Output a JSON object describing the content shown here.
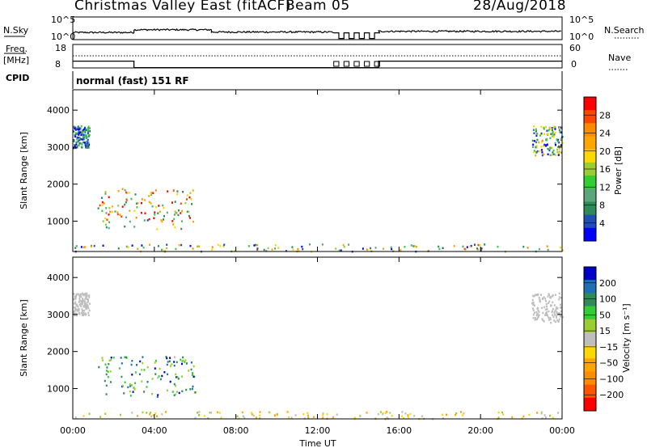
{
  "header": {
    "station": "Christmas Valley East (fitACF)",
    "beam": "Beam 05",
    "date": "28/Aug/2018"
  },
  "top_panels": {
    "nsky_label": "N.Sky",
    "nsky_ticks": [
      "10^5",
      "10^0"
    ],
    "nsearch_label": "N.Search",
    "nsearch_ticks": [
      "10^5",
      "10^0"
    ],
    "freq_label": "Freq.",
    "freq_unit": "[MHz]",
    "freq_ticks": [
      "18",
      "8"
    ],
    "nave_label": "Nave",
    "nave_ticks": [
      "60",
      "0"
    ],
    "cpid_label": "CPID",
    "cpid_text": "normal (fast) 151 RF"
  },
  "colors": {
    "power_scale": [
      "#0000ff",
      "#1e4fb4",
      "#2e8b57",
      "#5aa77a",
      "#32cd32",
      "#9acd32",
      "#ffd700",
      "#ffa500",
      "#ff8c00",
      "#ff4500",
      "#ff0000"
    ],
    "velocity_scale": [
      "#ff0000",
      "#ff5500",
      "#ff8c00",
      "#ffa500",
      "#ffd700",
      "#bebebe",
      "#9acd32",
      "#32cd32",
      "#2e8b57",
      "#1e6fb4",
      "#0000c8"
    ],
    "ground_grey": "#bebebe"
  },
  "chart_data": [
    {
      "type": "line",
      "panel": "nsky-nsearch",
      "x_range": [
        "00:00",
        "00:00"
      ],
      "segments": [
        {
          "x": [
            0.0,
            3.0
          ],
          "level": 0.28
        },
        {
          "x": [
            3.0,
            6.8
          ],
          "level": 0.4
        },
        {
          "x": [
            6.8,
            12.8
          ],
          "level": 0.3
        },
        {
          "x": [
            12.8,
            15.0
          ],
          "level": "dropouts"
        },
        {
          "x": [
            15.0,
            24.0
          ],
          "level": 0.33
        }
      ]
    },
    {
      "type": "line",
      "panel": "freq-nave",
      "series": [
        {
          "name": "Freq.",
          "x": [
            0,
            3.0,
            3.0,
            15.0,
            15.0,
            24
          ],
          "y": [
            10.9,
            10.9,
            8.1,
            8.1,
            10.9,
            10.9
          ]
        },
        {
          "name": "Nave",
          "x": [
            0,
            24
          ],
          "y": [
            31,
            31
          ]
        }
      ],
      "freq_ylim": [
        8,
        18
      ],
      "nave_ylim": [
        0,
        60
      ]
    },
    {
      "type": "heatmap",
      "panel": "power",
      "ylabel": "Slant Range [km]",
      "yticks": [
        "4000",
        "3000",
        "2000",
        "1000"
      ],
      "ylim": [
        180,
        4550
      ],
      "xticks": [
        "00:00",
        "04:00",
        "08:00",
        "12:00",
        "16:00",
        "20:00",
        "00:00"
      ],
      "colorbar": {
        "label": "Power [dB]",
        "ticks": [
          "28",
          "24",
          "20",
          "16",
          "12",
          "8",
          "4"
        ]
      },
      "scatter_regions": [
        {
          "t": [
            0.0,
            0.8
          ],
          "r": [
            3000,
            3600
          ],
          "power": [
            4,
            14
          ]
        },
        {
          "t": [
            1.2,
            6.0
          ],
          "r": [
            800,
            1900
          ],
          "power": [
            8,
            28
          ]
        },
        {
          "t": [
            0.0,
            24.0
          ],
          "r": [
            200,
            400
          ],
          "power": [
            4,
            24
          ]
        },
        {
          "t": [
            22.5,
            24.0
          ],
          "r": [
            2800,
            3600
          ],
          "power": [
            4,
            22
          ]
        }
      ]
    },
    {
      "type": "heatmap",
      "panel": "velocity",
      "ylabel": "Slant Range [km]",
      "yticks": [
        "4000",
        "3000",
        "2000",
        "1000"
      ],
      "ylim": [
        180,
        4550
      ],
      "xticks": [
        "00:00",
        "04:00",
        "08:00",
        "12:00",
        "16:00",
        "20:00",
        "00:00"
      ],
      "xlabel": "Time UT",
      "colorbar": {
        "label": "Velocity [m s⁻¹]",
        "ticks": [
          "200",
          "100",
          "50",
          "15",
          "−15",
          "−50",
          "−100",
          "−200"
        ]
      },
      "scatter_regions": [
        {
          "t": [
            0.0,
            0.8
          ],
          "r": [
            3000,
            3600
          ],
          "velocity": "ground"
        },
        {
          "t": [
            1.2,
            6.0
          ],
          "r": [
            800,
            1900
          ],
          "velocity": [
            15,
            200
          ]
        },
        {
          "t": [
            0.0,
            24.0
          ],
          "r": [
            200,
            400
          ],
          "velocity": [
            -100,
            50
          ]
        },
        {
          "t": [
            22.5,
            24.0
          ],
          "r": [
            2800,
            3600
          ],
          "velocity": "ground"
        }
      ]
    }
  ]
}
